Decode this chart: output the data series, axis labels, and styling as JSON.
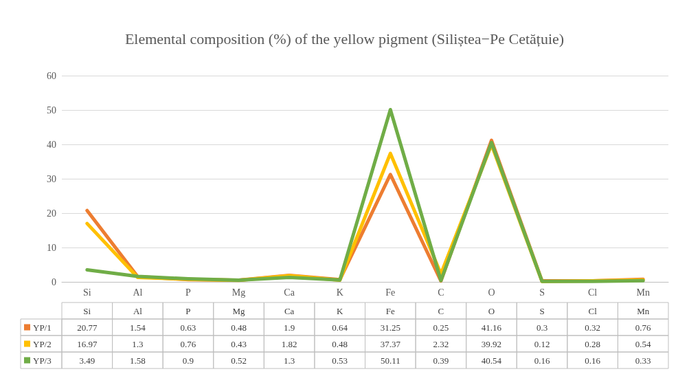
{
  "chart_data": {
    "type": "line",
    "title": "Elemental composition (%) of the yellow pigment (Siliștea−Pe Cetățuie)",
    "categories": [
      "Si",
      "Al",
      "P",
      "Mg",
      "Ca",
      "K",
      "Fe",
      "C",
      "O",
      "S",
      "Cl",
      "Mn"
    ],
    "series": [
      {
        "name": "YP/1",
        "color": "#ed7d31",
        "values": [
          20.77,
          1.54,
          0.63,
          0.48,
          1.9,
          0.64,
          31.25,
          0.25,
          41.16,
          0.3,
          0.32,
          0.76
        ]
      },
      {
        "name": "YP/2",
        "color": "#ffc000",
        "values": [
          16.97,
          1.3,
          0.76,
          0.43,
          1.82,
          0.48,
          37.37,
          2.32,
          39.92,
          0.12,
          0.28,
          0.54
        ]
      },
      {
        "name": "YP/3",
        "color": "#70ad47",
        "values": [
          3.49,
          1.58,
          0.9,
          0.52,
          1.3,
          0.53,
          50.11,
          0.39,
          40.54,
          0.16,
          0.16,
          0.33
        ]
      }
    ],
    "ylim": [
      0,
      60
    ],
    "yticks": [
      0,
      10,
      20,
      30,
      40,
      50,
      60
    ],
    "grid": "y",
    "legend": "bottom",
    "marker": "none",
    "line_style": "solid",
    "data_labels": true
  }
}
